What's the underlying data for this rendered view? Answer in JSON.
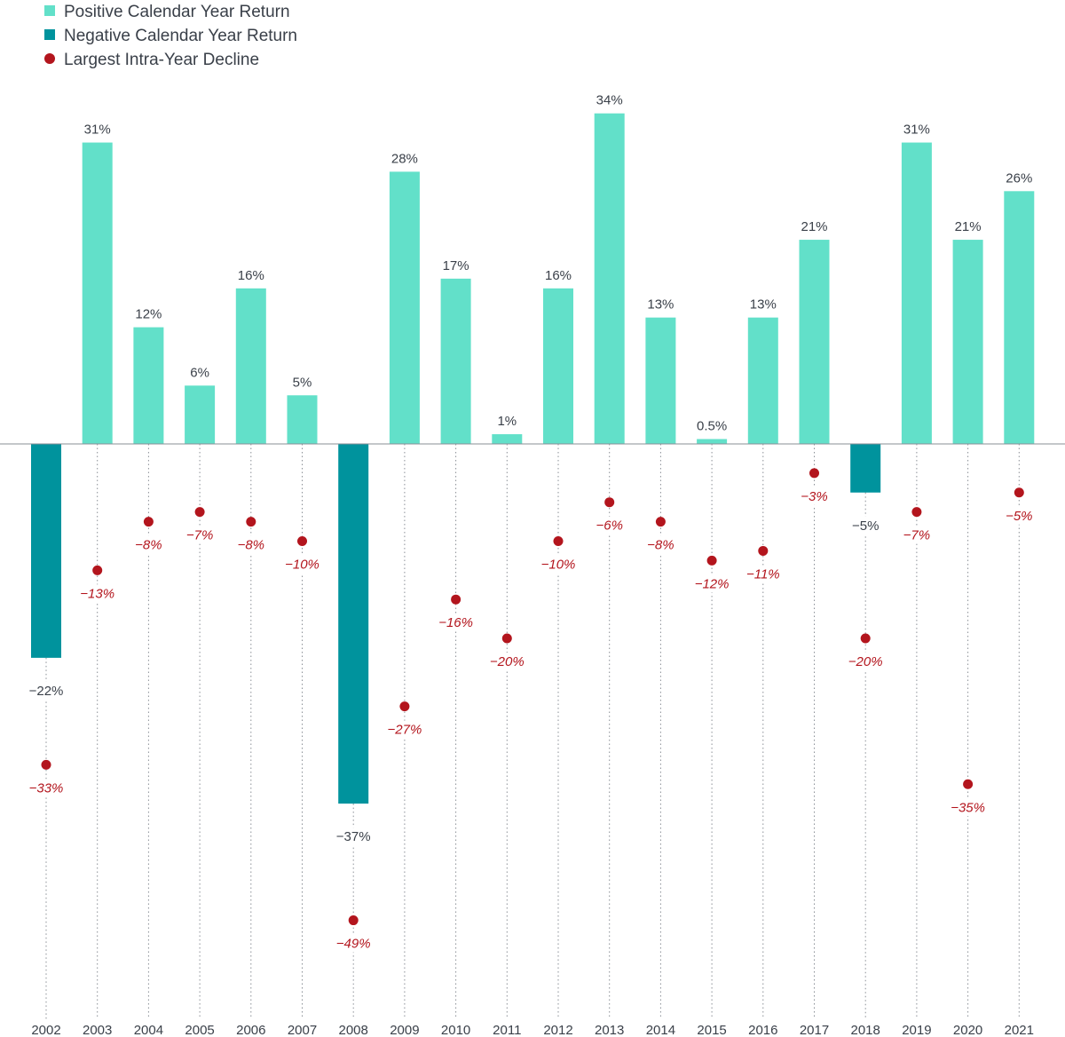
{
  "colors": {
    "positive": "#62e0c9",
    "negative": "#00939d",
    "decline": "#b3151d",
    "text": "#3a4049",
    "axis": "#8a8f96"
  },
  "legend": [
    {
      "label": "Positive Calendar Year Return",
      "marker": "square",
      "color": "#62e0c9"
    },
    {
      "label": "Negative Calendar Year Return",
      "marker": "square",
      "color": "#00939d"
    },
    {
      "label": "Largest Intra-Year Decline",
      "marker": "circle",
      "color": "#b3151d"
    }
  ],
  "chart_data": {
    "type": "bar",
    "title": "",
    "xlabel": "",
    "ylabel": "",
    "ylim": [
      -49,
      34
    ],
    "grid": false,
    "legend_position": "top-left",
    "categories": [
      "2002",
      "2003",
      "2004",
      "2005",
      "2006",
      "2007",
      "2008",
      "2009",
      "2010",
      "2011",
      "2012",
      "2013",
      "2014",
      "2015",
      "2016",
      "2017",
      "2018",
      "2019",
      "2020",
      "2021"
    ],
    "series": [
      {
        "name": "Calendar Year Return",
        "type": "bar",
        "values": [
          -22,
          31,
          12,
          6,
          16,
          5,
          -37,
          28,
          17,
          1,
          16,
          34,
          13,
          0.5,
          13,
          21,
          -5,
          31,
          21,
          26
        ],
        "labels": [
          "−22%",
          "31%",
          "12%",
          "6%",
          "16%",
          "5%",
          "−37%",
          "28%",
          "17%",
          "1%",
          "16%",
          "34%",
          "13%",
          "0.5%",
          "13%",
          "21%",
          "−5%",
          "31%",
          "21%",
          "26%"
        ]
      },
      {
        "name": "Largest Intra-Year Decline",
        "type": "scatter",
        "values": [
          -33,
          -13,
          -8,
          -7,
          -8,
          -10,
          -49,
          -27,
          -16,
          -20,
          -10,
          -6,
          -8,
          -12,
          -11,
          -3,
          -20,
          -7,
          -35,
          -5
        ],
        "labels": [
          "−33%",
          "−13%",
          "−8%",
          "−7%",
          "−8%",
          "−10%",
          "−49%",
          "−27%",
          "−16%",
          "−20%",
          "−10%",
          "−6%",
          "−8%",
          "−12%",
          "−11%",
          "−3%",
          "−20%",
          "−7%",
          "−35%",
          "−5%"
        ]
      }
    ]
  }
}
